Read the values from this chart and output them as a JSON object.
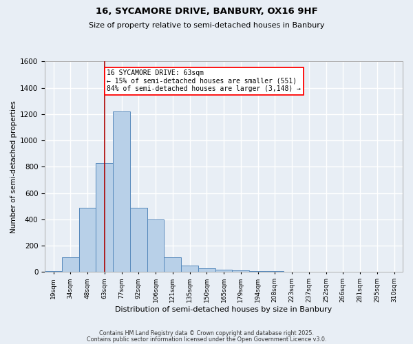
{
  "title_line1": "16, SYCAMORE DRIVE, BANBURY, OX16 9HF",
  "title_line2": "Size of property relative to semi-detached houses in Banbury",
  "xlabel": "Distribution of semi-detached houses by size in Banbury",
  "ylabel": "Number of semi-detached properties",
  "bin_labels": [
    "19sqm",
    "34sqm",
    "48sqm",
    "63sqm",
    "77sqm",
    "92sqm",
    "106sqm",
    "121sqm",
    "135sqm",
    "150sqm",
    "165sqm",
    "179sqm",
    "194sqm",
    "208sqm",
    "223sqm",
    "237sqm",
    "252sqm",
    "266sqm",
    "281sqm",
    "295sqm",
    "310sqm"
  ],
  "bar_values": [
    10,
    110,
    490,
    830,
    1220,
    490,
    400,
    110,
    50,
    30,
    20,
    15,
    10,
    5,
    0,
    0,
    0,
    0,
    0,
    0,
    0
  ],
  "bar_color": "#b8d0e8",
  "bar_edge_color": "#5588bb",
  "annotation_text": "16 SYCAMORE DRIVE: 63sqm\n← 15% of semi-detached houses are smaller (551)\n84% of semi-detached houses are larger (3,148) →",
  "annotation_box_color": "white",
  "annotation_box_edge_color": "red",
  "vline_color": "#aa0000",
  "ylim": [
    0,
    1600
  ],
  "yticks": [
    0,
    200,
    400,
    600,
    800,
    1000,
    1200,
    1400,
    1600
  ],
  "footer_line1": "Contains HM Land Registry data © Crown copyright and database right 2025.",
  "footer_line2": "Contains public sector information licensed under the Open Government Licence v3.0.",
  "bg_color": "#e8eef5",
  "grid_color": "white",
  "property_bin_idx": 3
}
